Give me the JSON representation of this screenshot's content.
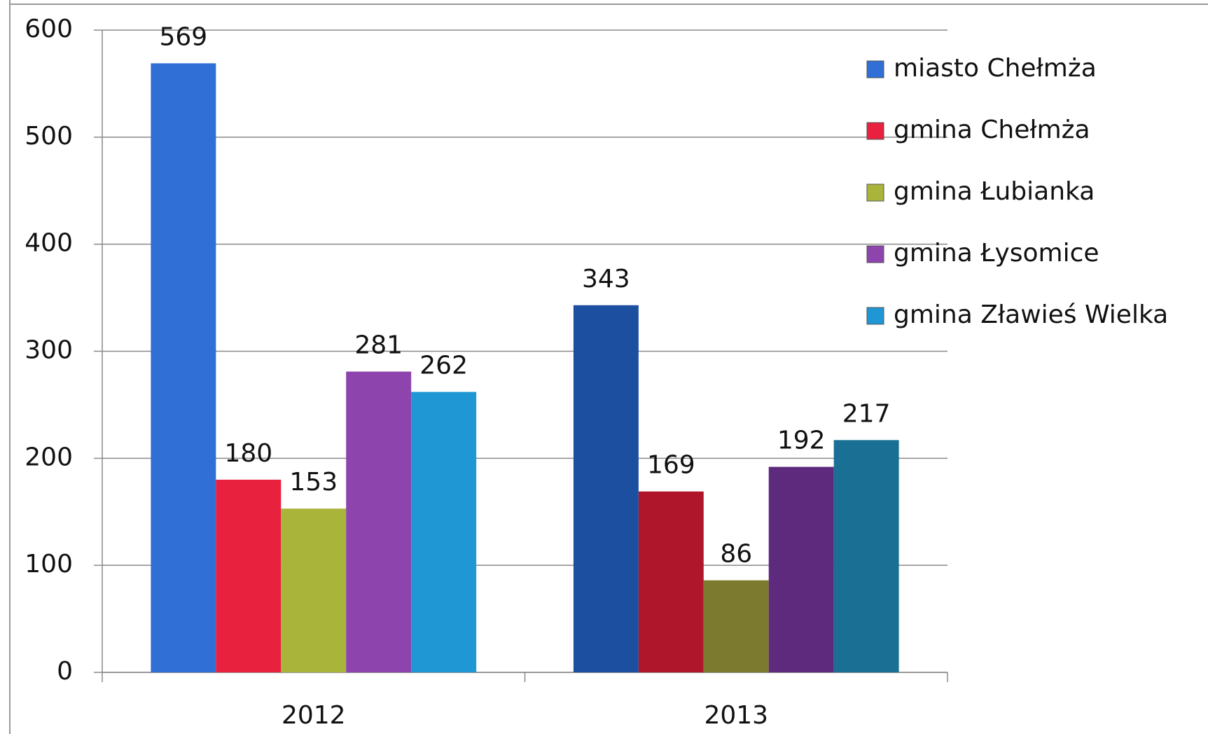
{
  "chart_data": {
    "type": "bar",
    "categories": [
      "2012",
      "2013"
    ],
    "series": [
      {
        "name": "miasto Chełmża",
        "color": "#2f6fd6",
        "colors": [
          "#2f6fd6",
          "#1d4fa0"
        ],
        "values": [
          569,
          343
        ]
      },
      {
        "name": "gmina Chełmża",
        "color": "#e8213f",
        "colors": [
          "#e8213f",
          "#b0162b"
        ],
        "values": [
          180,
          169
        ]
      },
      {
        "name": "gmina Łubianka",
        "color": "#a9b43a",
        "colors": [
          "#a9b43a",
          "#7c7a2e"
        ],
        "values": [
          153,
          86
        ]
      },
      {
        "name": "gmina Łysomice",
        "color": "#8e44ad",
        "colors": [
          "#8e44ad",
          "#5e2a7e"
        ],
        "values": [
          281,
          192
        ]
      },
      {
        "name": "gmina Zławieś Wielka",
        "color": "#1f97d4",
        "colors": [
          "#1f97d4",
          "#1a6f94"
        ],
        "values": [
          262,
          217
        ]
      }
    ],
    "ylim": [
      0,
      600
    ],
    "yticks": [
      0,
      100,
      200,
      300,
      400,
      500,
      600
    ],
    "grid": true,
    "legend": "right"
  }
}
